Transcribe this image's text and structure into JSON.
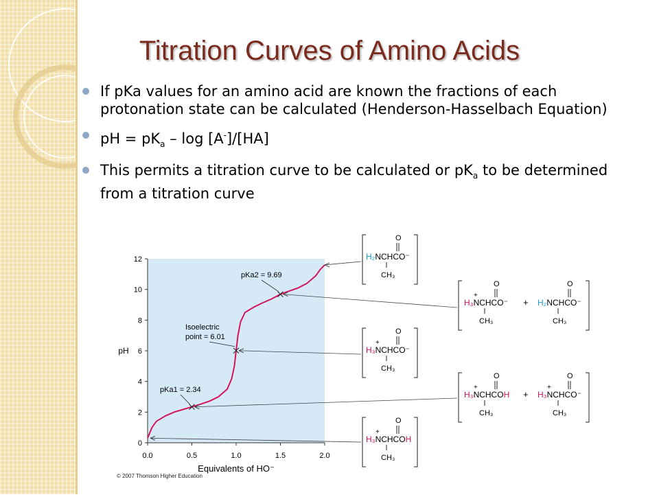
{
  "slide": {
    "title": "Titration Curves of Amino Acids",
    "bullets": [
      {
        "text": "If pKa values for an amino acid are known the fractions of each protonation state can be calculated (Henderson-Hasselbach Equation)"
      },
      {
        "parts": [
          "pH = pK",
          "a",
          " – log [A",
          "-",
          "]/[HA]"
        ]
      },
      {
        "parts": [
          "This permits a titration curve to be calculated or pK",
          "a",
          " to be determined from a titration curve"
        ]
      }
    ]
  },
  "chart_data": {
    "type": "line",
    "xlabel": "Equivalents of HO⁻",
    "ylabel": "pH",
    "xlim": [
      0,
      2
    ],
    "ylim": [
      0,
      12
    ],
    "x_ticks": [
      "0.0",
      "0.5",
      "1.0",
      "1.5",
      "2.0"
    ],
    "y_ticks": [
      "0",
      "2",
      "4",
      "6",
      "8",
      "10",
      "12"
    ],
    "series": [
      {
        "x": [
          0.0,
          0.05,
          0.1,
          0.2,
          0.3,
          0.4,
          0.5,
          0.6,
          0.7,
          0.8,
          0.9,
          0.95,
          0.98,
          1.0,
          1.02,
          1.05,
          1.1,
          1.2,
          1.3,
          1.4,
          1.5,
          1.6,
          1.7,
          1.8,
          1.9,
          1.95,
          2.0
        ],
        "y": [
          0.3,
          1.0,
          1.4,
          1.75,
          2.0,
          2.17,
          2.34,
          2.52,
          2.72,
          3.0,
          3.5,
          4.2,
          5.0,
          6.01,
          7.0,
          7.9,
          8.5,
          8.85,
          9.13,
          9.38,
          9.69,
          9.9,
          10.1,
          10.4,
          10.9,
          11.3,
          11.6
        ]
      }
    ],
    "annotations": [
      {
        "label": "pKa1 = 2.34",
        "x": 0.5,
        "y": 2.34
      },
      {
        "label": "Isoelectric point = 6.01",
        "x": 1.0,
        "y": 6.01
      },
      {
        "label": "pKa2 = 9.69",
        "x": 1.5,
        "y": 9.69
      }
    ],
    "shaded_region": [
      0,
      2
    ],
    "structures": [
      {
        "forms": [
          "H2NCHCO⁻ (CH3)"
        ]
      },
      {
        "forms": [
          "H3N⁺CHCO⁻ (CH3)",
          "H2NCHCO⁻ (CH3)"
        ]
      },
      {
        "forms": [
          "H3N⁺CHCO⁻ (CH3)"
        ]
      },
      {
        "forms": [
          "H3N⁺CHCOH (CH3)",
          "H3N⁺CHCO⁻ (CH3)"
        ]
      },
      {
        "forms": [
          "H3N⁺CHCOH (CH3)"
        ]
      }
    ],
    "credit": "© 2007 Thomson Higher Education",
    "colors": {
      "curve": "#d4145a",
      "shade": "#d5e9f7",
      "blue_group": "#1c9ad6",
      "red_group": "#d4145a"
    }
  }
}
